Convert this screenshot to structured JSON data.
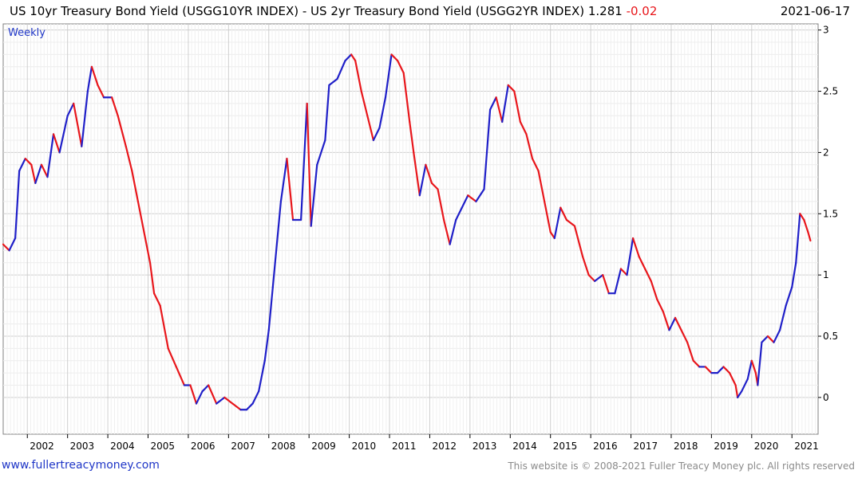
{
  "header": {
    "title": "US 10yr Treasury Bond Yield (USGG10YR INDEX) - US 2yr Treasury Bond Yield (USGG2YR INDEX) 1.281",
    "change": "-0.02",
    "date": "2021-06-17"
  },
  "footer": {
    "site": "www.fullertreacymoney.com",
    "copyright": "This website is © 2008-2021 Fuller Treacy Money plc. All rights reserved"
  },
  "colors": {
    "up": "#1f1fc8",
    "down": "#e8161b",
    "grid": "#d9d9d9",
    "accent": "#1f36c7"
  },
  "chart_data": {
    "type": "line",
    "title": "US 10yr Treasury Bond Yield (USGG10YR INDEX) - US 2yr Treasury Bond Yield (USGG2YR INDEX)",
    "period": "Weekly",
    "last_value": 1.281,
    "last_change": -0.02,
    "xlim": [
      2001.4,
      2021.65
    ],
    "ylim": [
      -0.3,
      3.05
    ],
    "yticks": [
      0,
      0.5,
      1,
      1.5,
      2,
      2.5,
      3
    ],
    "ytick_labels": [
      "0",
      "0.5",
      "1",
      "1.5",
      "2",
      "2.5",
      "3"
    ],
    "xticks": [
      2002,
      2003,
      2004,
      2005,
      2006,
      2007,
      2008,
      2009,
      2010,
      2011,
      2012,
      2013,
      2014,
      2015,
      2016,
      2017,
      2018,
      2019,
      2020,
      2021
    ],
    "xtick_labels": [
      "2002",
      "2003",
      "2004",
      "2005",
      "2006",
      "2007",
      "2008",
      "2009",
      "2010",
      "2011",
      "2012",
      "2013",
      "2014",
      "2015",
      "2016",
      "2017",
      "2018",
      "2019",
      "2020",
      "2021"
    ],
    "series": [
      {
        "name": "USGG10YR - USGG2YR",
        "x": [
          2001.4,
          2001.55,
          2001.7,
          2001.8,
          2001.95,
          2002.1,
          2002.2,
          2002.35,
          2002.5,
          2002.65,
          2002.8,
          2003.0,
          2003.15,
          2003.35,
          2003.5,
          2003.6,
          2003.75,
          2003.9,
          2004.1,
          2004.25,
          2004.45,
          2004.6,
          2004.75,
          2004.9,
          2005.05,
          2005.15,
          2005.3,
          2005.5,
          2005.7,
          2005.9,
          2006.05,
          2006.2,
          2006.35,
          2006.5,
          2006.7,
          2006.9,
          2007.1,
          2007.3,
          2007.45,
          2007.6,
          2007.75,
          2007.9,
          2008.0,
          2008.1,
          2008.3,
          2008.45,
          2008.6,
          2008.8,
          2008.95,
          2009.05,
          2009.2,
          2009.4,
          2009.5,
          2009.7,
          2009.9,
          2010.05,
          2010.15,
          2010.3,
          2010.45,
          2010.6,
          2010.75,
          2010.9,
          2011.05,
          2011.2,
          2011.35,
          2011.5,
          2011.6,
          2011.75,
          2011.9,
          2012.05,
          2012.2,
          2012.35,
          2012.5,
          2012.65,
          2012.8,
          2012.95,
          2013.15,
          2013.35,
          2013.5,
          2013.65,
          2013.8,
          2013.95,
          2014.1,
          2014.25,
          2014.4,
          2014.55,
          2014.7,
          2014.85,
          2015.0,
          2015.1,
          2015.25,
          2015.4,
          2015.6,
          2015.8,
          2015.95,
          2016.1,
          2016.3,
          2016.45,
          2016.6,
          2016.75,
          2016.9,
          2017.05,
          2017.2,
          2017.35,
          2017.5,
          2017.65,
          2017.8,
          2017.95,
          2018.1,
          2018.25,
          2018.4,
          2018.55,
          2018.7,
          2018.85,
          2019.0,
          2019.15,
          2019.3,
          2019.45,
          2019.6,
          2019.65,
          2019.75,
          2019.9,
          2020.0,
          2020.1,
          2020.15,
          2020.25,
          2020.4,
          2020.55,
          2020.7,
          2020.85,
          2021.0,
          2021.1,
          2021.2,
          2021.3,
          2021.4,
          2021.46
        ],
        "y": [
          1.25,
          1.2,
          1.3,
          1.85,
          1.95,
          1.9,
          1.75,
          1.9,
          1.8,
          2.15,
          2.0,
          2.3,
          2.4,
          2.05,
          2.5,
          2.7,
          2.55,
          2.45,
          2.45,
          2.3,
          2.05,
          1.85,
          1.6,
          1.35,
          1.1,
          0.85,
          0.75,
          0.4,
          0.25,
          0.1,
          0.1,
          -0.05,
          0.05,
          0.1,
          -0.05,
          0.0,
          -0.05,
          -0.1,
          -0.1,
          -0.05,
          0.05,
          0.3,
          0.55,
          0.9,
          1.6,
          1.95,
          1.45,
          1.45,
          2.4,
          1.4,
          1.9,
          2.1,
          2.55,
          2.6,
          2.75,
          2.8,
          2.75,
          2.5,
          2.3,
          2.1,
          2.2,
          2.45,
          2.8,
          2.75,
          2.65,
          2.25,
          2.0,
          1.65,
          1.9,
          1.75,
          1.7,
          1.45,
          1.25,
          1.45,
          1.55,
          1.65,
          1.6,
          1.7,
          2.35,
          2.45,
          2.25,
          2.55,
          2.5,
          2.25,
          2.15,
          1.95,
          1.85,
          1.6,
          1.35,
          1.3,
          1.55,
          1.45,
          1.4,
          1.15,
          1.0,
          0.95,
          1.0,
          0.85,
          0.85,
          1.05,
          1.0,
          1.3,
          1.15,
          1.05,
          0.95,
          0.8,
          0.7,
          0.55,
          0.65,
          0.55,
          0.45,
          0.3,
          0.25,
          0.25,
          0.2,
          0.2,
          0.25,
          0.2,
          0.1,
          0.0,
          0.05,
          0.15,
          0.3,
          0.2,
          0.1,
          0.45,
          0.5,
          0.45,
          0.55,
          0.75,
          0.9,
          1.1,
          1.5,
          1.45,
          1.35,
          1.28
        ]
      }
    ]
  }
}
